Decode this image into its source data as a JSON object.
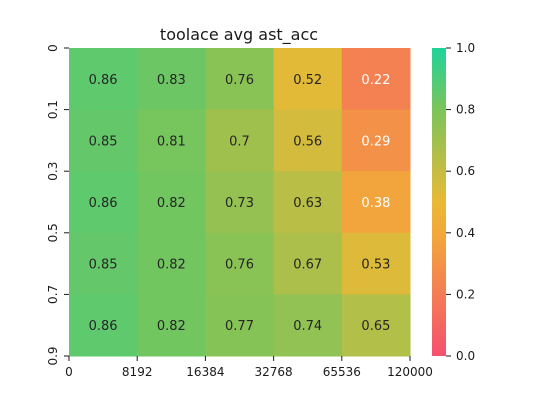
{
  "chart_data": {
    "type": "heatmap",
    "title": "toolace avg ast_acc",
    "x_ticks": [
      "0",
      "8192",
      "16384",
      "32768",
      "65536",
      "120000"
    ],
    "y_ticks": [
      "0",
      "0.1",
      "0.3",
      "0.5",
      "0.7",
      "0.9"
    ],
    "values": [
      [
        0.86,
        0.83,
        0.76,
        0.52,
        0.22
      ],
      [
        0.85,
        0.81,
        0.7,
        0.56,
        0.29
      ],
      [
        0.86,
        0.82,
        0.73,
        0.63,
        0.38
      ],
      [
        0.85,
        0.82,
        0.76,
        0.67,
        0.53
      ],
      [
        0.86,
        0.82,
        0.77,
        0.74,
        0.65
      ]
    ],
    "vmin": 0.0,
    "vmax": 1.0,
    "colormap": [
      "#f5506e",
      "#f2a93a",
      "#e9b936",
      "#7bc45a",
      "#1fd39a"
    ],
    "colorbar_ticks": [
      "0.0",
      "0.2",
      "0.4",
      "0.6",
      "0.8",
      "1.0"
    ]
  }
}
